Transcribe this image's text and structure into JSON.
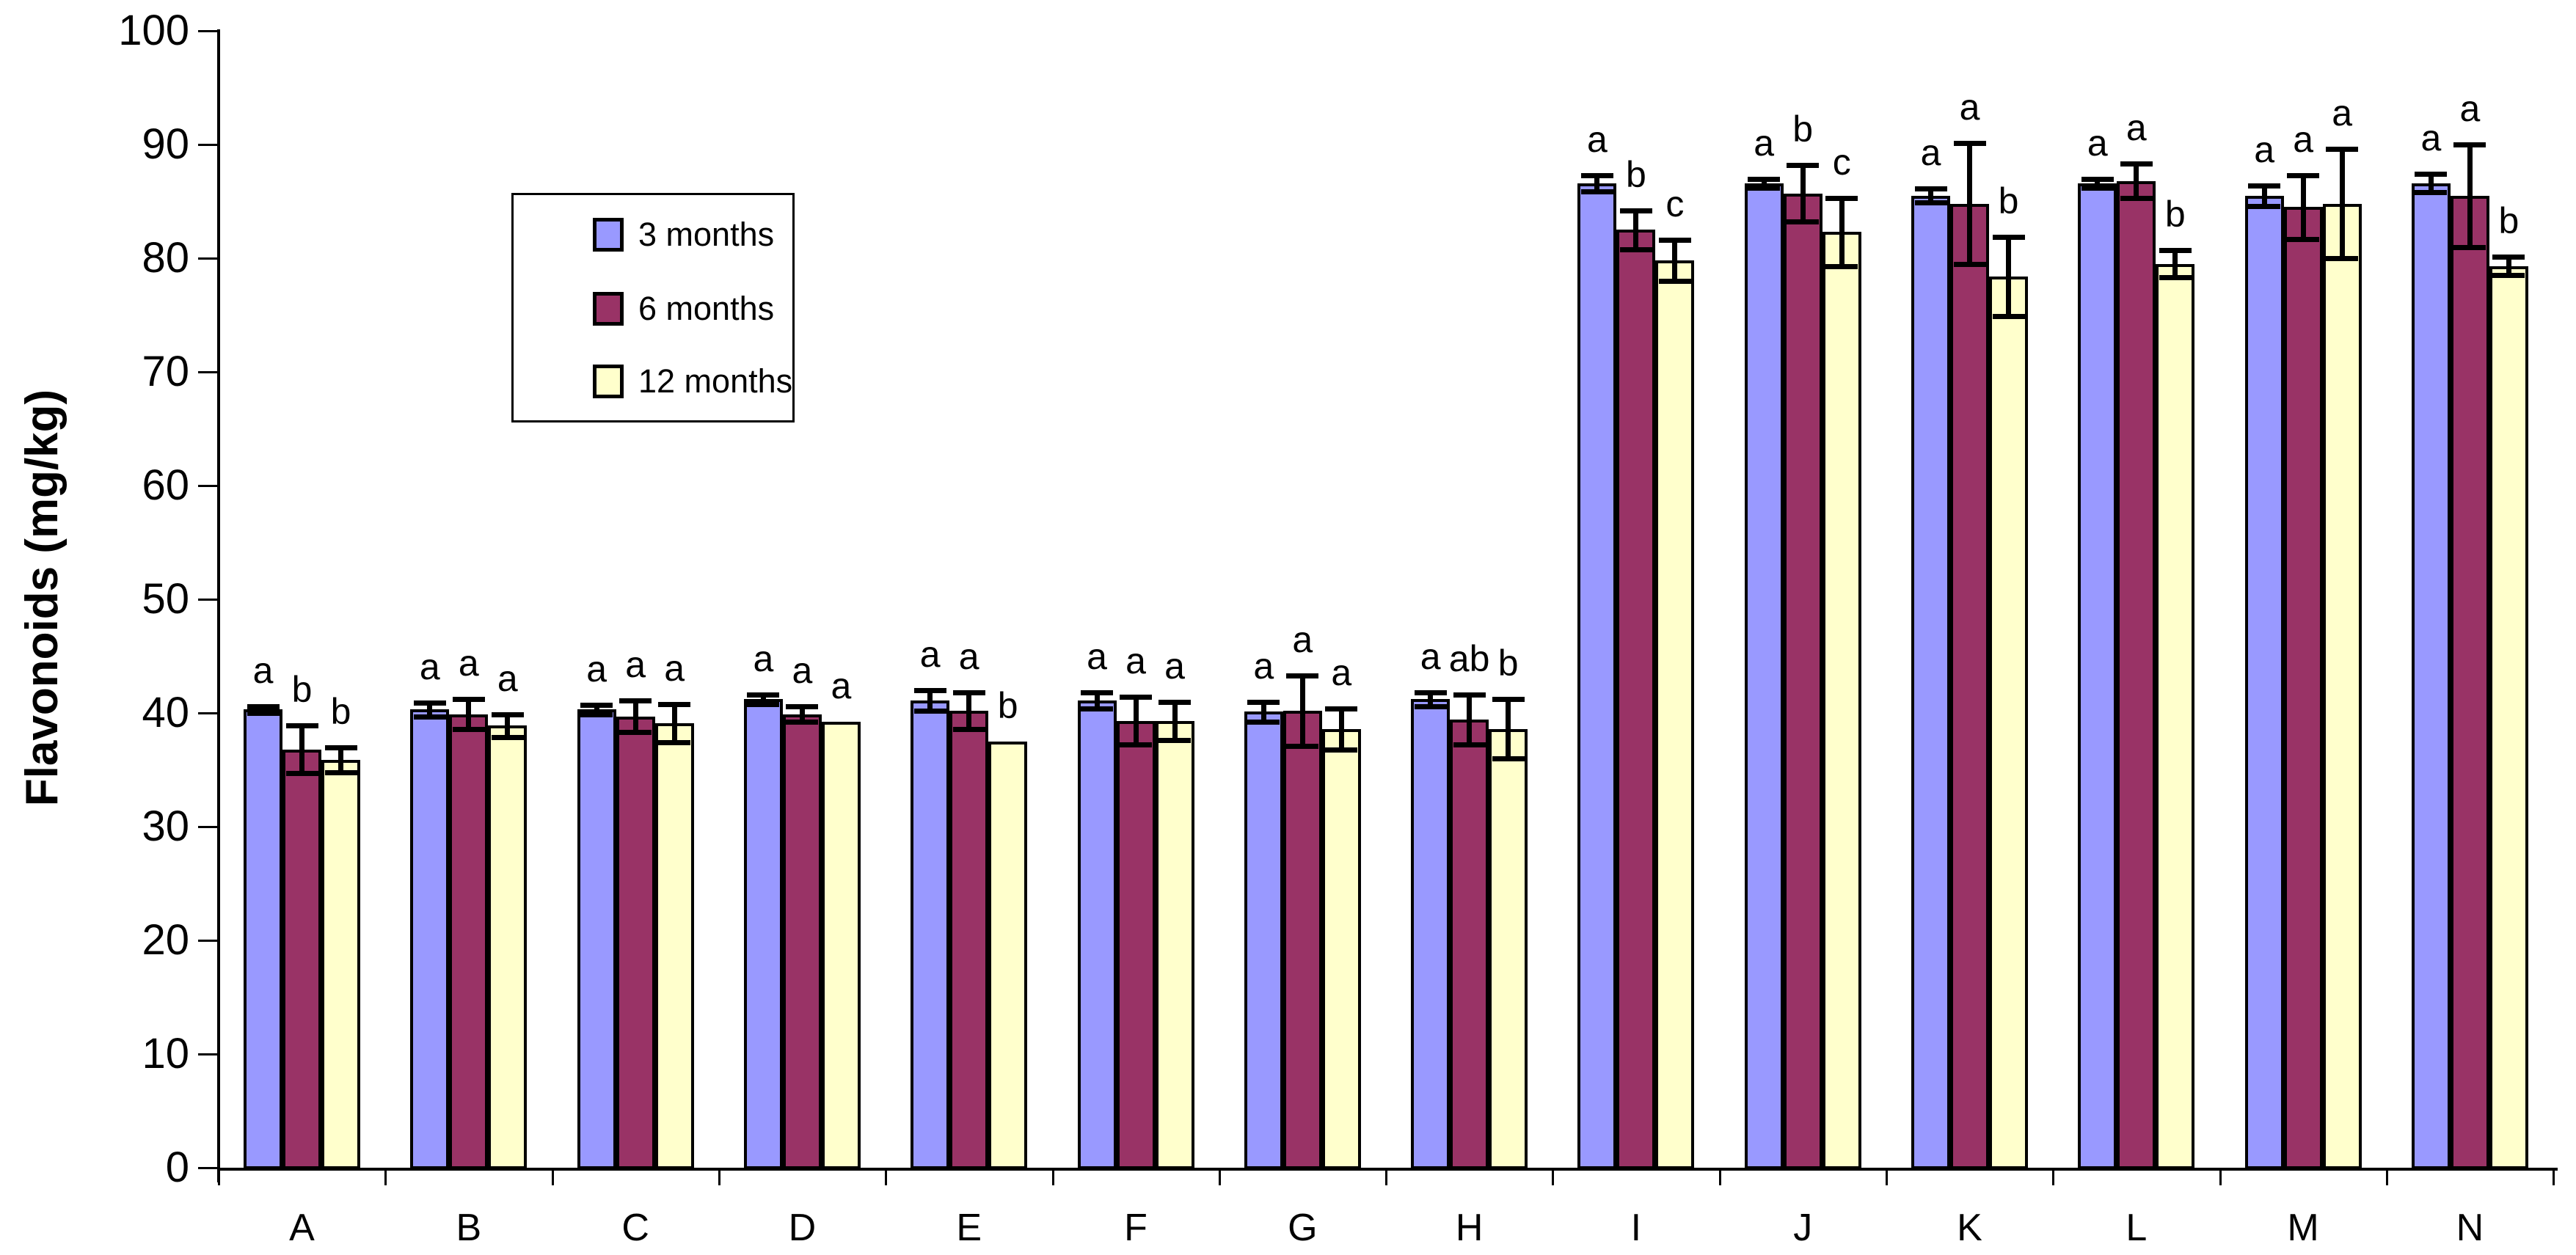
{
  "chart_data": {
    "type": "bar",
    "title": "",
    "xlabel": "",
    "ylabel": "Flavonoids (mg/kg)",
    "ylim": [
      0,
      100
    ],
    "yticks": [
      0,
      10,
      20,
      30,
      40,
      50,
      60,
      70,
      80,
      90,
      100
    ],
    "grid": false,
    "legend_position": "upper-left-inside",
    "categories": [
      "A",
      "B",
      "C",
      "D",
      "E",
      "F",
      "G",
      "H",
      "I",
      "J",
      "K",
      "L",
      "M",
      "N"
    ],
    "series": [
      {
        "name": "3 months",
        "color": "#9999FF",
        "values": [
          40.3,
          40.3,
          40.3,
          41.2,
          41.1,
          41.1,
          40.1,
          41.2,
          86.6,
          86.6,
          85.5,
          86.6,
          85.5,
          86.6
        ],
        "errors": [
          0.3,
          0.6,
          0.4,
          0.4,
          0.9,
          0.7,
          0.9,
          0.6,
          0.7,
          0.4,
          0.6,
          0.4,
          0.9,
          0.8
        ],
        "sig_letters": [
          "a",
          "a",
          "a",
          "a",
          "a",
          "a",
          "a",
          "a",
          "a",
          "a",
          "a",
          "a",
          "a",
          "a"
        ]
      },
      {
        "name": "6 months",
        "color": "#993366",
        "values": [
          36.8,
          39.9,
          39.7,
          39.9,
          40.2,
          39.3,
          40.2,
          39.4,
          82.5,
          85.7,
          84.8,
          86.8,
          84.5,
          85.5
        ],
        "errors": [
          2.1,
          1.3,
          1.4,
          0.7,
          1.6,
          2.1,
          3.1,
          2.2,
          1.7,
          2.5,
          5.3,
          1.5,
          2.8,
          4.5
        ],
        "sig_letters": [
          "b",
          "a",
          "a",
          "a",
          "a",
          "a",
          "a",
          "ab",
          "b",
          "b",
          "a",
          "a",
          "a",
          "a"
        ]
      },
      {
        "name": "12 months",
        "color": "#FFFFCC",
        "values": [
          35.9,
          38.9,
          39.1,
          39.2,
          37.5,
          39.3,
          38.6,
          38.6,
          79.8,
          82.3,
          78.4,
          79.5,
          84.8,
          79.3
        ],
        "errors": [
          1.1,
          1.0,
          1.7,
          0,
          0,
          1.7,
          1.8,
          2.6,
          1.8,
          3.0,
          3.5,
          1.2,
          4.8,
          0.8
        ],
        "sig_letters": [
          "b",
          "a",
          "a",
          "a",
          "b",
          "a",
          "a",
          "b",
          "c",
          "c",
          "b",
          "b",
          "a",
          "b"
        ]
      }
    ]
  }
}
